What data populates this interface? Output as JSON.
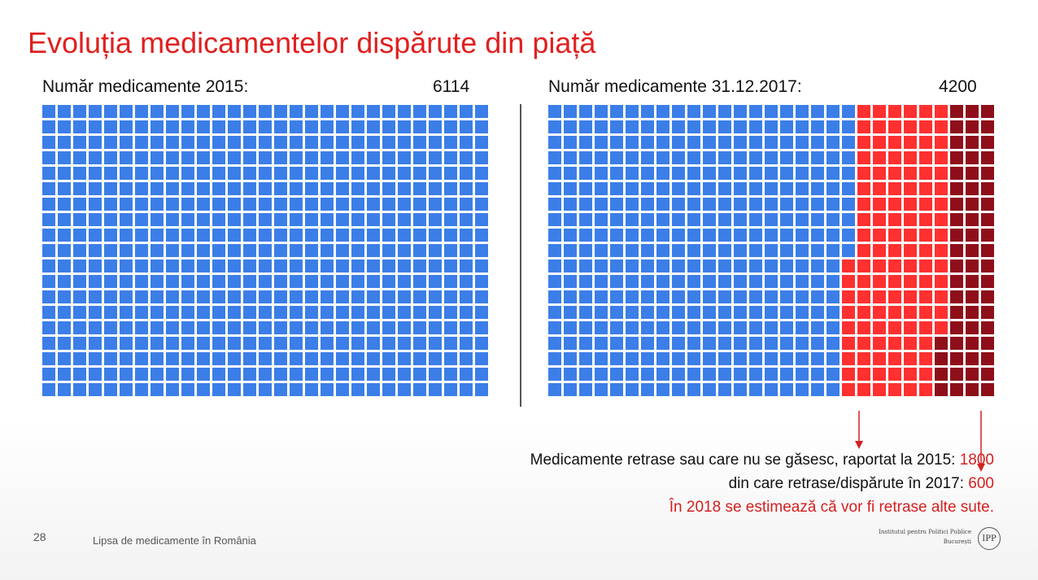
{
  "title": "Evoluția medicamentelor dispărute din piață",
  "left_panel": {
    "label": "Număr medicamente 2015:",
    "value": "6114",
    "grid": {
      "rows": 19,
      "cols": 29,
      "available_cells": 551
    }
  },
  "right_panel": {
    "label": "Număr medicamente 31.12.2017:",
    "value": "4200",
    "grid": {
      "rows": 19,
      "cols": 29,
      "available_cells": 371,
      "withdrawn_cells": 119,
      "withdrawn_2017_cells": 61
    }
  },
  "colors": {
    "available": "#3b7ee8",
    "withdrawn": "#ff3030",
    "withdrawn_2017": "#8e0f1a",
    "title": "#e02020",
    "highlight": "#d42020"
  },
  "annotations": {
    "line1_text": "Medicamente retrase sau care nu se găsesc, raportat la 2015:",
    "line1_value": "1800",
    "line2_text": "din care retrase/dispărute în 2017:",
    "line2_value": "600",
    "line3_text": "În 2018 se estimează că vor fi retrase alte sute."
  },
  "footer": {
    "slide_number": "28",
    "text": "Lipsa de medicamente în România",
    "logo_line1": "Institutul pentru Politici Publice",
    "logo_line2": "București",
    "logo_mark": "IPP"
  }
}
